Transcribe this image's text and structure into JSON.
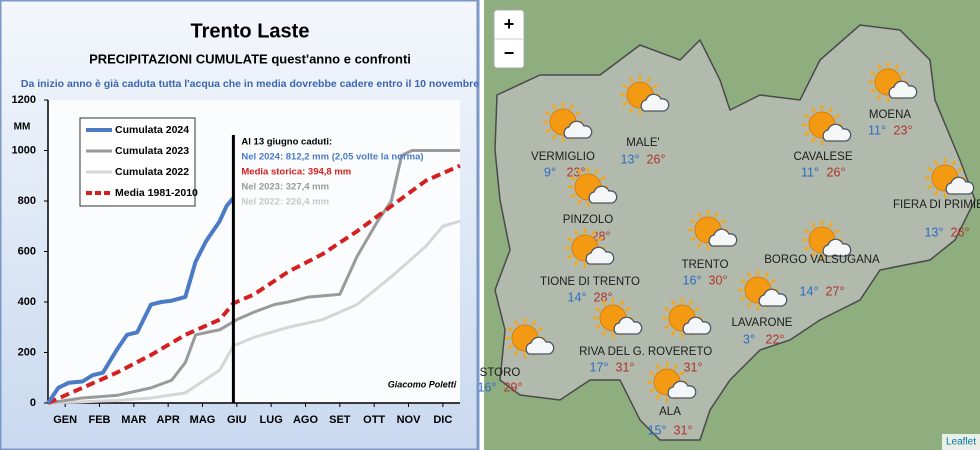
{
  "chart_data": {
    "type": "line",
    "title": "Trento Laste",
    "subtitle": "PRECIPITAZIONI CUMULATE quest'anno e confronti",
    "note": "Da inizio anno è già caduta tutta l'acqua che in media dovrebbe cadere entro il 10 novembre",
    "y_label": "MM",
    "signature": "Giacomo Poletti",
    "xlim": [
      0,
      12
    ],
    "ylim": [
      0,
      1200
    ],
    "yticks": [
      0,
      200,
      400,
      600,
      800,
      1000,
      1200
    ],
    "xticks": [
      {
        "value": 0.5,
        "label": "GEN"
      },
      {
        "value": 1.5,
        "label": "FEB"
      },
      {
        "value": 2.5,
        "label": "MAR"
      },
      {
        "value": 3.5,
        "label": "APR"
      },
      {
        "value": 4.5,
        "label": "MAG"
      },
      {
        "value": 5.5,
        "label": "GIU"
      },
      {
        "value": 6.5,
        "label": "LUG"
      },
      {
        "value": 7.5,
        "label": "AGO"
      },
      {
        "value": 8.5,
        "label": "SET"
      },
      {
        "value": 9.5,
        "label": "OTT"
      },
      {
        "value": 10.5,
        "label": "NOV"
      },
      {
        "value": 11.5,
        "label": "DIC"
      }
    ],
    "vline": 5.4,
    "series": [
      {
        "name": "Cumulata 2024",
        "color": "#4a7bc4",
        "width": 4,
        "dashed": false,
        "x": [
          0,
          0.3,
          0.6,
          1.0,
          1.3,
          1.6,
          2.0,
          2.3,
          2.6,
          3.0,
          3.3,
          3.6,
          4.0,
          4.3,
          4.6,
          5.0,
          5.2,
          5.4
        ],
        "values": [
          0,
          60,
          80,
          85,
          110,
          120,
          210,
          270,
          280,
          390,
          400,
          405,
          420,
          560,
          640,
          720,
          780,
          812.2
        ]
      },
      {
        "name": "Cumulata 2023",
        "color": "#9a9a9a",
        "width": 3,
        "dashed": false,
        "x": [
          0,
          1,
          2,
          3,
          3.6,
          4,
          4.3,
          5,
          5.5,
          6,
          6.6,
          7,
          7.6,
          8.5,
          9,
          9.6,
          10,
          10.3,
          10.6,
          12
        ],
        "values": [
          0,
          20,
          30,
          60,
          90,
          160,
          270,
          290,
          330,
          360,
          390,
          400,
          420,
          430,
          580,
          720,
          800,
          980,
          1000,
          1000
        ]
      },
      {
        "name": "Cumulata 2022",
        "color": "#d6d6d6",
        "width": 3,
        "dashed": false,
        "x": [
          0,
          2,
          3,
          4,
          5,
          5.4,
          6,
          7,
          8,
          9,
          10,
          10.5,
          11,
          11.5,
          12
        ],
        "values": [
          0,
          10,
          20,
          40,
          130,
          226.4,
          260,
          300,
          330,
          390,
          500,
          560,
          620,
          700,
          720
        ]
      },
      {
        "name": "Media 1981-2010",
        "color": "#d62020",
        "width": 4,
        "dashed": true,
        "x": [
          0,
          1,
          2,
          3,
          4,
          5,
          5.4,
          6,
          7,
          8,
          9,
          10,
          11,
          12
        ],
        "values": [
          0,
          60,
          120,
          190,
          270,
          330,
          394.8,
          430,
          520,
          590,
          680,
          780,
          880,
          940
        ]
      }
    ],
    "annotations": [
      {
        "text": "Al 13 giugno caduti:",
        "color": "#000000"
      },
      {
        "text": "Nel 2024: 812,2 mm (2,05 volte la norma)",
        "color": "#4a7bc4"
      },
      {
        "text": "Media storica: 394,8 mm",
        "color": "#d62020"
      },
      {
        "text": "Nel 2023: 327,4 mm",
        "color": "#9a9a9a"
      },
      {
        "text": "Nel 2022: 226,4 mm",
        "color": "#c8c8c8"
      }
    ]
  },
  "map": {
    "zoom_in": "+",
    "zoom_out": "−",
    "attribution": "Leaflet",
    "cities": [
      {
        "name": "MALE'",
        "min": "13°",
        "max": "26°"
      },
      {
        "name": "VERMIGLIO",
        "min": "9°",
        "max": "23°"
      },
      {
        "name": "PINZOLO",
        "max": "28°"
      },
      {
        "name": "TIONE DI TRENTO",
        "min": "14°",
        "max": "28°"
      },
      {
        "name": "TRENTO",
        "min": "16°",
        "max": "30°"
      },
      {
        "name": "CAVALESE",
        "min": "11°",
        "max": "26°"
      },
      {
        "name": "MOENA",
        "min": "11°",
        "max": "23°"
      },
      {
        "name": "FIERA DI PRIMIERO",
        "min": "13°",
        "max": "26°"
      },
      {
        "name": "BORGO VALSUGANA",
        "min": "14°",
        "max": "27°"
      },
      {
        "name": "LAVARONE",
        "min": "3°",
        "max": "22°"
      },
      {
        "name": "RIVA DEL G.",
        "min": "17°",
        "max": "31°"
      },
      {
        "name": "ROVERETO",
        "max": "31°"
      },
      {
        "name": "STORO",
        "min": "16°",
        "max": "29°"
      },
      {
        "name": "ALA",
        "min": "15°",
        "max": "31°"
      }
    ]
  }
}
